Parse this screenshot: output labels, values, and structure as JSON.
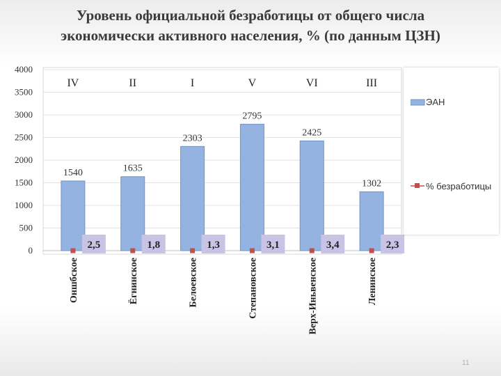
{
  "title": {
    "line1": "Уровень официальной безработицы от общего числа",
    "line2": "экономически активного населения, % (по данным ЦЗН)"
  },
  "chart_data": {
    "type": "bar",
    "categories": [
      "Оншбское",
      "Ёгнинское",
      "Белоевское",
      "Степановское",
      "Верх-Иньвенское",
      "Ленинское"
    ],
    "roman_labels": [
      "IV",
      "II",
      "I",
      "V",
      "VI",
      "III"
    ],
    "series": [
      {
        "name": "ЭАН",
        "type": "bar",
        "values": [
          1540,
          1635,
          2303,
          2795,
          2425,
          1302
        ],
        "data_labels": [
          "1540",
          "1635",
          "2303",
          "2795",
          "2425",
          "1302"
        ]
      },
      {
        "name": "% безработицы",
        "type": "line-markers",
        "values": [
          2.5,
          1.8,
          1.3,
          3.1,
          3.4,
          2.3
        ],
        "data_labels": [
          "2,5",
          "1,8",
          "1,3",
          "3,1",
          "3,4",
          "2,3"
        ]
      }
    ],
    "y_ticks": [
      "0",
      "500",
      "1000",
      "1500",
      "2000",
      "2500",
      "3000",
      "3500",
      "4000"
    ],
    "ylim": [
      0,
      4000
    ],
    "grid": true,
    "legend_position": "right",
    "colors": {
      "bar": "#95b3e0",
      "bar_edge": "#6f93c8",
      "marker": "#c0504d",
      "label_box": "#c9c3e6"
    }
  },
  "legend": {
    "bar_label": "ЭАН",
    "marker_label": "% безработицы"
  },
  "page_number": "11"
}
